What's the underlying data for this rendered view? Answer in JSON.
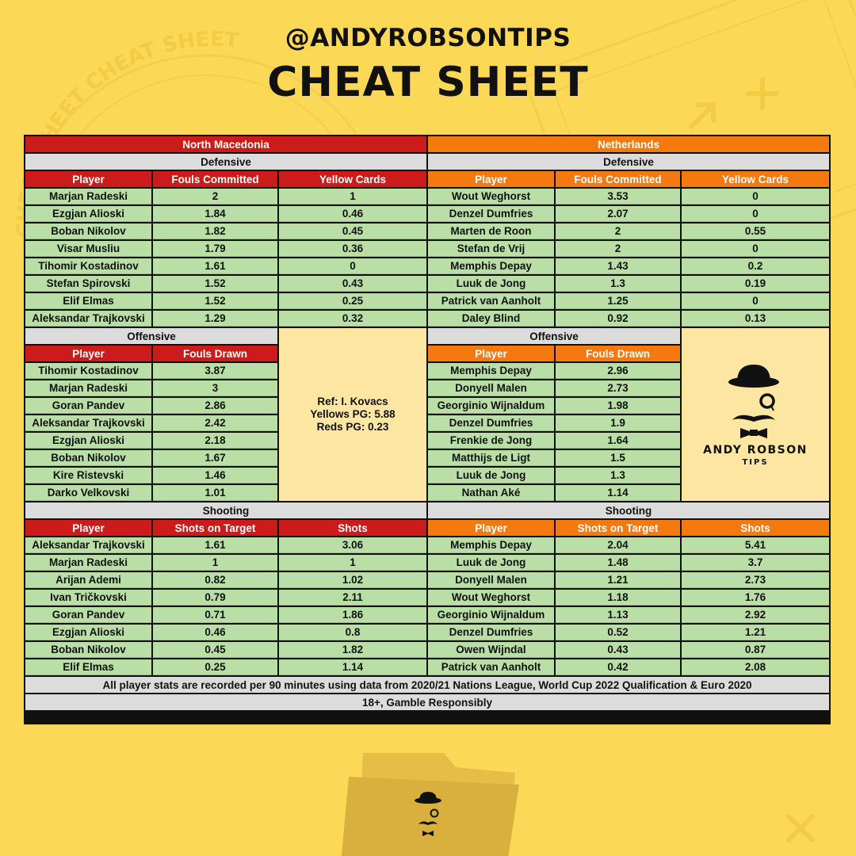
{
  "header": {
    "handle": "@ANDYROBSONTIPS",
    "title": "CHEAT SHEET",
    "watermark": "CHEAT SHEET CHEAT SHEET"
  },
  "colors": {
    "background": "#fbd956",
    "team_left": "#cc1b1b",
    "team_right": "#f47a0f",
    "section": "#dcdcdc",
    "row": "#b9dfa6",
    "info": "#fde6a2"
  },
  "teams": {
    "left": {
      "name": "North Macedonia",
      "defensive": {
        "title": "Defensive",
        "headers": [
          "Player",
          "Fouls Committed",
          "Yellow Cards"
        ],
        "rows": [
          [
            "Marjan Radeski",
            "2",
            "1"
          ],
          [
            "Ezgjan Alioski",
            "1.84",
            "0.46"
          ],
          [
            "Boban Nikolov",
            "1.82",
            "0.45"
          ],
          [
            "Visar Musliu",
            "1.79",
            "0.36"
          ],
          [
            "Tihomir Kostadinov",
            "1.61",
            "0"
          ],
          [
            "Stefan Spirovski",
            "1.52",
            "0.43"
          ],
          [
            "Elif Elmas",
            "1.52",
            "0.25"
          ],
          [
            "Aleksandar Trajkovski",
            "1.29",
            "0.32"
          ]
        ]
      },
      "offensive": {
        "title": "Offensive",
        "headers": [
          "Player",
          "Fouls Drawn"
        ],
        "rows": [
          [
            "Tihomir Kostadinov",
            "3.87"
          ],
          [
            "Marjan Radeski",
            "3"
          ],
          [
            "Goran Pandev",
            "2.86"
          ],
          [
            "Aleksandar Trajkovski",
            "2.42"
          ],
          [
            "Ezgjan Alioski",
            "2.18"
          ],
          [
            "Boban Nikolov",
            "1.67"
          ],
          [
            "Kire Ristevski",
            "1.46"
          ],
          [
            "Darko Velkovski",
            "1.01"
          ]
        ]
      },
      "shooting": {
        "title": "Shooting",
        "headers": [
          "Player",
          "Shots on Target",
          "Shots"
        ],
        "rows": [
          [
            "Aleksandar Trajkovski",
            "1.61",
            "3.06"
          ],
          [
            "Marjan Radeski",
            "1",
            "1"
          ],
          [
            "Arijan Ademi",
            "0.82",
            "1.02"
          ],
          [
            "Ivan Tričkovski",
            "0.79",
            "2.11"
          ],
          [
            "Goran Pandev",
            "0.71",
            "1.86"
          ],
          [
            "Ezgjan Alioski",
            "0.46",
            "0.8"
          ],
          [
            "Boban Nikolov",
            "0.45",
            "1.82"
          ],
          [
            "Elif Elmas",
            "0.25",
            "1.14"
          ]
        ]
      }
    },
    "right": {
      "name": "Netherlands",
      "defensive": {
        "title": "Defensive",
        "headers": [
          "Player",
          "Fouls Committed",
          "Yellow Cards"
        ],
        "rows": [
          [
            "Wout Weghorst",
            "3.53",
            "0"
          ],
          [
            "Denzel Dumfries",
            "2.07",
            "0"
          ],
          [
            "Marten de Roon",
            "2",
            "0.55"
          ],
          [
            "Stefan de Vrij",
            "2",
            "0"
          ],
          [
            "Memphis Depay",
            "1.43",
            "0.2"
          ],
          [
            "Luuk de Jong",
            "1.3",
            "0.19"
          ],
          [
            "Patrick van Aanholt",
            "1.25",
            "0"
          ],
          [
            "Daley Blind",
            "0.92",
            "0.13"
          ]
        ]
      },
      "offensive": {
        "title": "Offensive",
        "headers": [
          "Player",
          "Fouls Drawn"
        ],
        "rows": [
          [
            "Memphis Depay",
            "2.96"
          ],
          [
            "Donyell Malen",
            "2.73"
          ],
          [
            "Georginio Wijnaldum",
            "1.98"
          ],
          [
            "Denzel Dumfries",
            "1.9"
          ],
          [
            "Frenkie de Jong",
            "1.64"
          ],
          [
            "Matthijs de Ligt",
            "1.5"
          ],
          [
            "Luuk de Jong",
            "1.3"
          ],
          [
            "Nathan Aké",
            "1.14"
          ]
        ]
      },
      "shooting": {
        "title": "Shooting",
        "headers": [
          "Player",
          "Shots on Target",
          "Shots"
        ],
        "rows": [
          [
            "Memphis Depay",
            "2.04",
            "5.41"
          ],
          [
            "Luuk de Jong",
            "1.48",
            "3.7"
          ],
          [
            "Donyell Malen",
            "1.21",
            "2.73"
          ],
          [
            "Wout Weghorst",
            "1.18",
            "1.76"
          ],
          [
            "Georginio Wijnaldum",
            "1.13",
            "2.92"
          ],
          [
            "Denzel Dumfries",
            "0.52",
            "1.21"
          ],
          [
            "Owen Wijndal",
            "0.43",
            "0.87"
          ],
          [
            "Patrick van Aanholt",
            "0.42",
            "2.08"
          ]
        ]
      }
    }
  },
  "referee": {
    "line1": "Ref: I. Kovacs",
    "line2": "Yellows PG: 5.88",
    "line3": "Reds PG: 0.23"
  },
  "logo": {
    "line1": "ANDY ROBSON",
    "line2": "TIPS",
    "icon": "bowler-hat-monocle-mustache-bowtie-icon"
  },
  "footer": {
    "note": "All player stats are recorded per 90 minutes using data from 2020/21 Nations League, World Cup 2022 Qualification & Euro 2020",
    "disclaimer": "18+, Gamble Responsibly"
  },
  "bottom_icon": "folder-icon"
}
